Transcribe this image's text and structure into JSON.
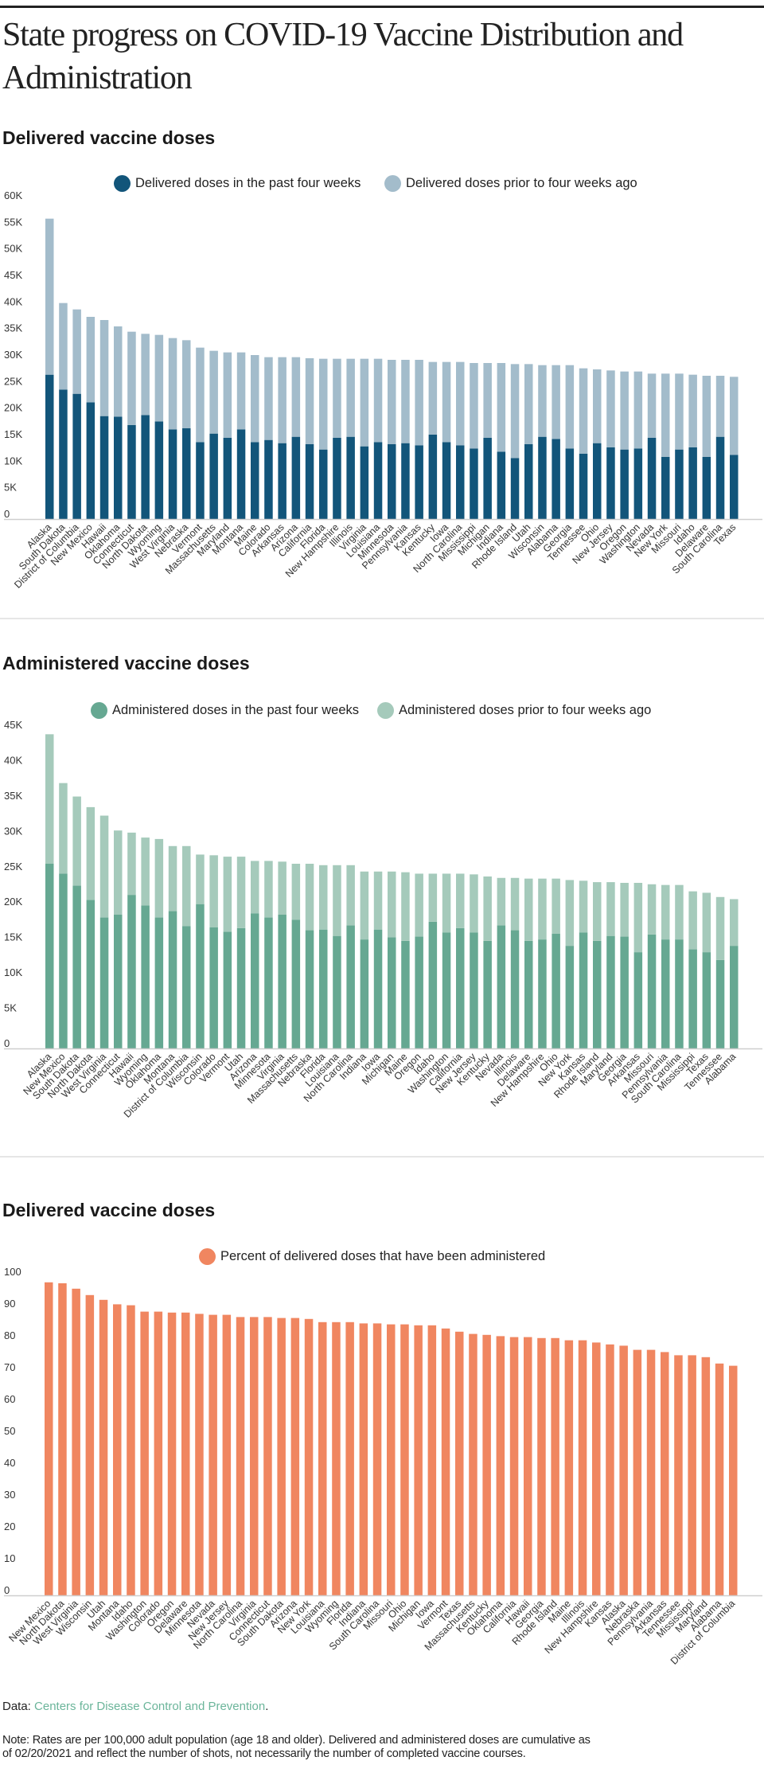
{
  "page": {
    "title": "State progress on COVID-19 Vaccine Distribution and Administration",
    "footer": {
      "data_prefix": "Data: ",
      "source_link": "Centers for Disease Control and Prevention",
      "data_suffix": ".",
      "note_lines": [
        "Note: Rates are per 100,000 adult population (age 18 and older). Delivered and administered doses are cumulative as",
        "of 02/20/2021 and reflect the number of shots, not necessarily the number of completed vaccine courses."
      ]
    }
  },
  "chart_data": [
    {
      "type": "bar",
      "stacked": true,
      "title": "Delivered vaccine doses",
      "xlabel": "",
      "ylabel": "",
      "ylim": [
        0,
        60000
      ],
      "yticks": [
        "0",
        "5K",
        "10K",
        "15K",
        "20K",
        "25K",
        "30K",
        "35K",
        "40K",
        "45K",
        "50K",
        "55K",
        "60K"
      ],
      "grid": false,
      "legend": "top-center",
      "categories": [
        "Alaska",
        "South Dakota",
        "District of Columbia",
        "New Mexico",
        "Hawaii",
        "Oklahoma",
        "Connecticut",
        "North Dakota",
        "Wyoming",
        "West Virginia",
        "Nebraska",
        "Vermont",
        "Massachusetts",
        "Maryland",
        "Montana",
        "Maine",
        "Colorado",
        "Arkansas",
        "Arizona",
        "California",
        "Florida",
        "New Hampshire",
        "Illinois",
        "Virginia",
        "Louisiana",
        "Minnesota",
        "Pennsylvania",
        "Kansas",
        "Kentucky",
        "Iowa",
        "North Carolina",
        "Mississippi",
        "Michigan",
        "Indiana",
        "Rhode Island",
        "Utah",
        "Wisconsin",
        "Alabama",
        "Georgia",
        "Tennessee",
        "Ohio",
        "New Jersey",
        "Oregon",
        "Washington",
        "Nevada",
        "New York",
        "Missouri",
        "Idaho",
        "Delaware",
        "South Carolina",
        "Texas"
      ],
      "series": [
        {
          "name": "Delivered doses in the past four weeks",
          "color": "#12557a",
          "values": [
            27200,
            24400,
            23600,
            22000,
            19400,
            19300,
            17700,
            19600,
            18400,
            16900,
            17100,
            14500,
            16100,
            15300,
            16900,
            14500,
            14900,
            14300,
            15500,
            14100,
            13100,
            15300,
            15500,
            13700,
            14500,
            14100,
            14300,
            13900,
            15900,
            14500,
            13900,
            13300,
            15300,
            12700,
            11500,
            14100,
            15500,
            15100,
            13300,
            12300,
            14300,
            13500,
            13100,
            13300,
            15300,
            11700,
            13100,
            13500,
            11700,
            15500,
            12100
          ]
        },
        {
          "name": "Delivered doses prior to four weeks ago",
          "color": "#a3bccb",
          "values": [
            29400,
            16300,
            15900,
            16100,
            18100,
            17000,
            17600,
            15300,
            16300,
            17200,
            16600,
            17800,
            15600,
            16100,
            14500,
            16400,
            15600,
            16200,
            15000,
            16200,
            17100,
            14900,
            14700,
            16500,
            15700,
            15900,
            15700,
            16100,
            13700,
            15100,
            15700,
            16100,
            14100,
            16700,
            17700,
            15100,
            13500,
            13900,
            15700,
            16100,
            13900,
            14500,
            14700,
            14500,
            12100,
            15700,
            14300,
            13700,
            15300,
            11500,
            14700
          ]
        }
      ]
    },
    {
      "type": "bar",
      "stacked": true,
      "title": "Administered vaccine doses",
      "xlabel": "",
      "ylabel": "",
      "ylim": [
        0,
        45000
      ],
      "yticks": [
        "0",
        "5K",
        "10K",
        "15K",
        "20K",
        "25K",
        "30K",
        "35K",
        "40K",
        "45K"
      ],
      "grid": false,
      "legend": "top-center",
      "categories": [
        "Alaska",
        "New Mexico",
        "South Dakota",
        "North Dakota",
        "West Virginia",
        "Connecticut",
        "Hawaii",
        "Wyoming",
        "Oklahoma",
        "Montana",
        "District of Columbia",
        "Wisconsin",
        "Colorado",
        "Vermont",
        "Utah",
        "Arizona",
        "Minnesota",
        "Virginia",
        "Massachusetts",
        "Nebraska",
        "Florida",
        "Louisiana",
        "North Carolina",
        "Indiana",
        "Iowa",
        "Michigan",
        "Maine",
        "Oregon",
        "Idaho",
        "Washington",
        "California",
        "New Jersey",
        "Kentucky",
        "Nevada",
        "Illinois",
        "Delaware",
        "New Hampshire",
        "Ohio",
        "New York",
        "Kansas",
        "Rhode Island",
        "Maryland",
        "Georgia",
        "Arkansas",
        "Missouri",
        "Pennsylvania",
        "South Carolina",
        "Mississippi",
        "Texas",
        "Tennessee",
        "Alabama"
      ],
      "series": [
        {
          "name": "Administered doses in the past four weeks",
          "color": "#66a892",
          "values": [
            26100,
            24700,
            23000,
            21000,
            18500,
            18900,
            21700,
            20200,
            18500,
            19400,
            17300,
            20400,
            17100,
            16500,
            17000,
            19100,
            18500,
            18900,
            18200,
            16700,
            16800,
            15900,
            17400,
            15400,
            16800,
            15700,
            15200,
            15800,
            17900,
            16400,
            17000,
            16400,
            15200,
            17400,
            16700,
            15200,
            15400,
            16200,
            14500,
            16400,
            15200,
            15900,
            15800,
            13600,
            16100,
            15400,
            15400,
            14000,
            13600,
            12500,
            14500
          ]
        },
        {
          "name": "Administered doses prior to four weeks ago",
          "color": "#a5cabb",
          "values": [
            18300,
            12800,
            12600,
            13100,
            14400,
            11900,
            8800,
            9600,
            11100,
            9200,
            11300,
            7000,
            10200,
            10600,
            10100,
            7400,
            8000,
            7500,
            7900,
            9400,
            9100,
            10000,
            8500,
            9600,
            8200,
            9300,
            9700,
            8900,
            6800,
            8300,
            7700,
            8200,
            9100,
            6700,
            7400,
            8800,
            8600,
            7800,
            9300,
            7300,
            8300,
            7600,
            7600,
            9800,
            7100,
            7700,
            7700,
            8200,
            8400,
            8900,
            6600
          ]
        }
      ]
    },
    {
      "type": "bar",
      "stacked": false,
      "title": "Delivered vaccine doses",
      "xlabel": "",
      "ylabel": "",
      "ylim": [
        0,
        100
      ],
      "yticks": [
        "0",
        "10",
        "20",
        "30",
        "40",
        "50",
        "60",
        "70",
        "80",
        "90",
        "100"
      ],
      "grid": false,
      "legend": "top-center",
      "categories": [
        "New Mexico",
        "North Dakota",
        "West Virginia",
        "Wisconsin",
        "Utah",
        "Montana",
        "Idaho",
        "Washington",
        "Colorado",
        "Oregon",
        "Delaware",
        "Minnesota",
        "Nevada",
        "New Jersey",
        "North Carolina",
        "Virginia",
        "Connecticut",
        "South Dakota",
        "Arizona",
        "New York",
        "Louisiana",
        "Wyoming",
        "Florida",
        "Indiana",
        "South Carolina",
        "Missouri",
        "Ohio",
        "Michigan",
        "Iowa",
        "Vermont",
        "Texas",
        "Massachusetts",
        "Kentucky",
        "Oklahoma",
        "California",
        "Hawaii",
        "Georgia",
        "Rhode Island",
        "Maine",
        "Illinois",
        "New Hampshire",
        "Kansas",
        "Alaska",
        "Nebraska",
        "Pennsylvania",
        "Arkansas",
        "Tennessee",
        "Mississippi",
        "Maryland",
        "Alabama",
        "District of Columbia"
      ],
      "series": [
        {
          "name": "Percent of delivered doses that have been administered",
          "color": "#f08660",
          "values": [
            98.3,
            98.0,
            96.3,
            94.3,
            92.8,
            91.4,
            91.1,
            89.1,
            89.1,
            88.8,
            88.8,
            88.4,
            88.1,
            88.1,
            87.4,
            87.4,
            87.4,
            87.1,
            87.1,
            86.8,
            85.8,
            85.8,
            85.8,
            85.4,
            85.4,
            85.1,
            85.1,
            84.8,
            84.8,
            83.8,
            82.8,
            82.1,
            81.8,
            81.4,
            81.1,
            81.1,
            80.8,
            80.8,
            80.1,
            80.1,
            79.4,
            78.8,
            78.4,
            77.1,
            77.1,
            76.4,
            75.4,
            75.4,
            74.8,
            72.8,
            72.1
          ]
        }
      ]
    }
  ]
}
